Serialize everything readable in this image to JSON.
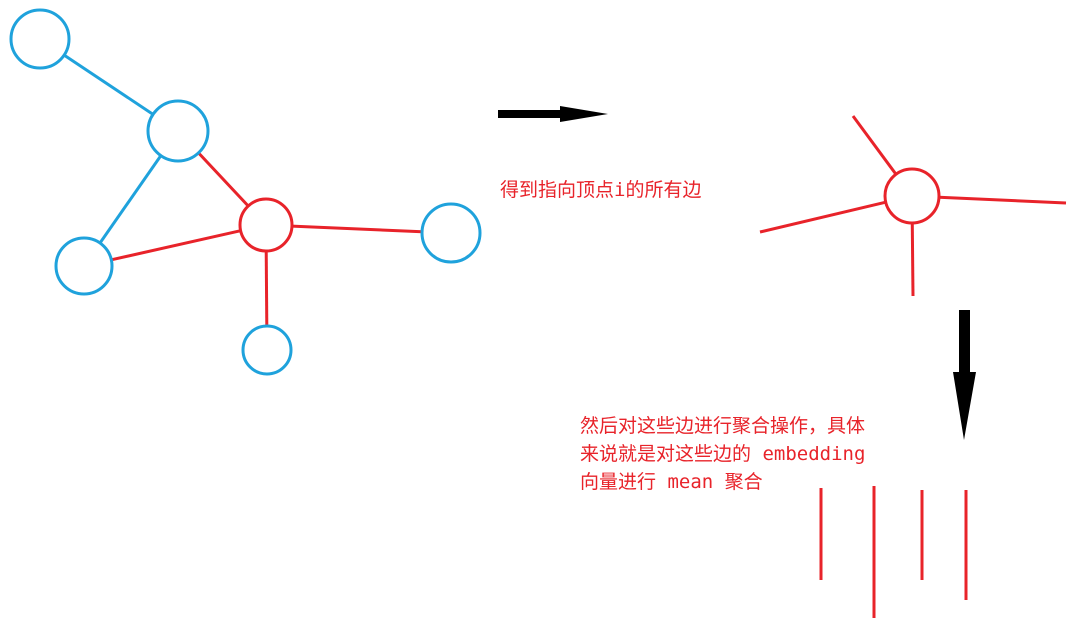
{
  "colors": {
    "node_blue": "#1fa2dc",
    "edge_blue": "#1fa2dc",
    "edge_red": "#e8232a",
    "node_red": "#e8232a",
    "arrow": "#000000",
    "text_red": "#e8232a"
  },
  "steps": [
    {
      "caption": "得到指向顶点i的所有边"
    },
    {
      "caption_lines": [
        "然后对这些边进行聚合操作，具体",
        "来说就是对这些边的 embedding",
        "向量进行 mean 聚合"
      ]
    }
  ],
  "graph": {
    "center": "i",
    "center_color": "red",
    "neighbor_color": "blue",
    "neighbor_count": 5,
    "edges_into_center": 4
  },
  "aggregation": {
    "operation": "mean",
    "edge_vectors": 4
  }
}
